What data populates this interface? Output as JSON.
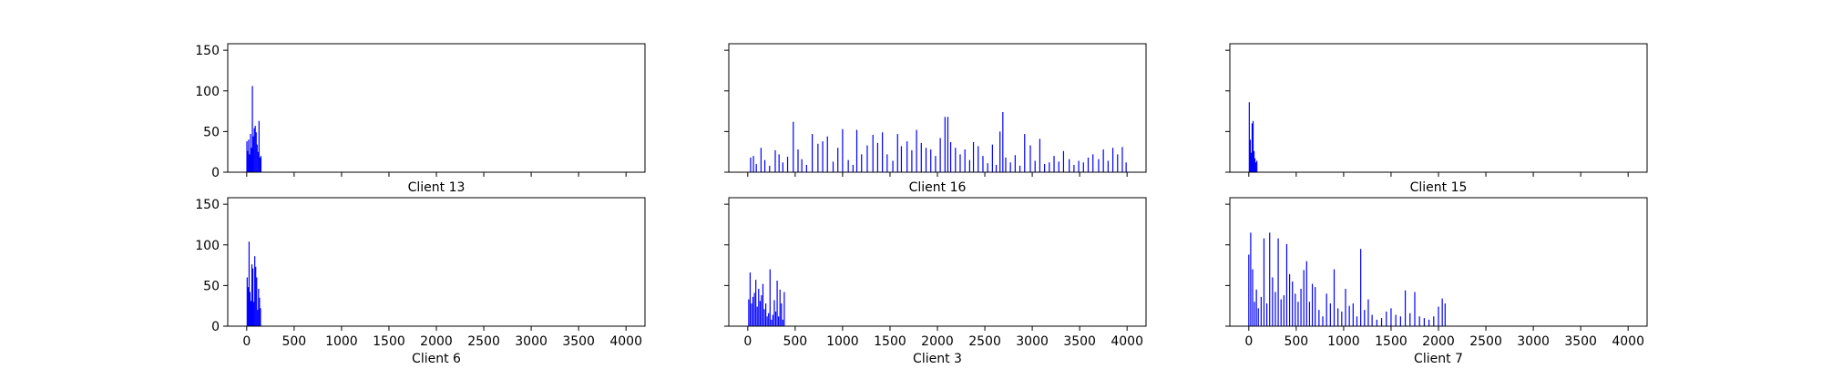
{
  "figure": {
    "xticks": [
      0,
      500,
      1000,
      1500,
      2000,
      2500,
      3000,
      3500,
      4000
    ],
    "yticks": [
      0,
      50,
      100,
      150
    ],
    "xlim": [
      -200,
      4200
    ],
    "ylim": [
      0,
      158
    ],
    "bar_color": "#0000ff"
  },
  "chart_data": [
    {
      "type": "bar",
      "xlabel": "Client 13",
      "xlim": [
        -200,
        4200
      ],
      "ylim": [
        0,
        158
      ],
      "x": [
        2,
        10,
        20,
        30,
        40,
        50,
        60,
        70,
        80,
        90,
        100,
        110,
        120,
        130,
        140,
        150
      ],
      "values": [
        38,
        26,
        40,
        22,
        47,
        30,
        106,
        44,
        54,
        57,
        49,
        34,
        25,
        63,
        18,
        20
      ]
    },
    {
      "type": "bar",
      "xlabel": "Client 16",
      "xlim": [
        -200,
        4200
      ],
      "ylim": [
        0,
        158
      ],
      "x": [
        30,
        60,
        90,
        140,
        180,
        230,
        290,
        330,
        370,
        420,
        480,
        530,
        570,
        620,
        680,
        740,
        790,
        840,
        900,
        950,
        1000,
        1060,
        1110,
        1150,
        1200,
        1260,
        1320,
        1370,
        1420,
        1470,
        1530,
        1580,
        1620,
        1680,
        1730,
        1780,
        1830,
        1880,
        1930,
        1980,
        2030,
        2080,
        2110,
        2140,
        2190,
        2240,
        2290,
        2340,
        2380,
        2430,
        2480,
        2530,
        2580,
        2620,
        2660,
        2690,
        2720,
        2770,
        2820,
        2870,
        2920,
        2980,
        3030,
        3080,
        3130,
        3180,
        3230,
        3280,
        3330,
        3390,
        3440,
        3490,
        3540,
        3590,
        3640,
        3700,
        3750,
        3800,
        3850,
        3900,
        3950,
        3990
      ],
      "values": [
        18,
        20,
        10,
        30,
        15,
        8,
        27,
        22,
        12,
        19,
        62,
        28,
        16,
        9,
        47,
        35,
        38,
        44,
        13,
        30,
        53,
        15,
        9,
        52,
        22,
        33,
        46,
        36,
        49,
        22,
        14,
        47,
        32,
        38,
        27,
        52,
        36,
        30,
        28,
        20,
        42,
        68,
        68,
        37,
        30,
        22,
        28,
        15,
        37,
        32,
        20,
        11,
        34,
        9,
        50,
        74,
        18,
        12,
        21,
        8,
        47,
        33,
        14,
        41,
        10,
        12,
        20,
        13,
        26,
        16,
        9,
        14,
        12,
        18,
        22,
        16,
        28,
        14,
        30,
        22,
        31,
        12
      ]
    },
    {
      "type": "bar",
      "xlabel": "Client 15",
      "xlim": [
        -200,
        4200
      ],
      "ylim": [
        0,
        158
      ],
      "x": [
        5,
        15,
        25,
        35,
        45,
        55,
        65,
        75,
        85
      ],
      "values": [
        86,
        40,
        24,
        60,
        63,
        26,
        17,
        12,
        14
      ]
    },
    {
      "type": "bar",
      "xlabel": "Client 6",
      "xlim": [
        -200,
        4200
      ],
      "ylim": [
        0,
        158
      ],
      "x": [
        5,
        15,
        25,
        35,
        45,
        55,
        65,
        75,
        85,
        95,
        105,
        115,
        125,
        135,
        145
      ],
      "values": [
        60,
        48,
        104,
        42,
        31,
        76,
        71,
        30,
        86,
        73,
        60,
        20,
        46,
        35,
        22
      ]
    },
    {
      "type": "bar",
      "xlabel": "Client 3",
      "xlim": [
        -200,
        4200
      ],
      "ylim": [
        0,
        158
      ],
      "x": [
        10,
        25,
        40,
        55,
        70,
        85,
        100,
        115,
        130,
        145,
        160,
        175,
        190,
        205,
        220,
        235,
        250,
        265,
        280,
        295,
        310,
        325,
        340,
        355,
        370,
        385
      ],
      "values": [
        33,
        66,
        28,
        36,
        41,
        57,
        24,
        46,
        31,
        38,
        52,
        21,
        28,
        12,
        16,
        70,
        8,
        14,
        32,
        18,
        56,
        12,
        45,
        28,
        8,
        42
      ]
    },
    {
      "type": "bar",
      "xlabel": "Client 7",
      "xlim": [
        -200,
        4200
      ],
      "ylim": [
        0,
        158
      ],
      "x": [
        0,
        20,
        40,
        60,
        80,
        100,
        130,
        160,
        190,
        220,
        250,
        280,
        310,
        340,
        370,
        400,
        430,
        460,
        490,
        520,
        550,
        580,
        610,
        640,
        670,
        700,
        740,
        780,
        820,
        860,
        900,
        940,
        980,
        1020,
        1060,
        1100,
        1140,
        1180,
        1220,
        1260,
        1300,
        1350,
        1400,
        1450,
        1500,
        1550,
        1600,
        1650,
        1700,
        1750,
        1800,
        1850,
        1900,
        1950,
        2000,
        2040,
        2070
      ],
      "values": [
        88,
        115,
        70,
        30,
        45,
        22,
        36,
        108,
        28,
        115,
        60,
        42,
        108,
        33,
        38,
        101,
        64,
        55,
        40,
        30,
        46,
        69,
        80,
        30,
        52,
        48,
        20,
        12,
        40,
        28,
        70,
        22,
        18,
        46,
        25,
        28,
        12,
        95,
        20,
        33,
        14,
        8,
        10,
        18,
        22,
        14,
        12,
        44,
        16,
        42,
        12,
        10,
        8,
        12,
        24,
        34,
        28
      ]
    }
  ]
}
